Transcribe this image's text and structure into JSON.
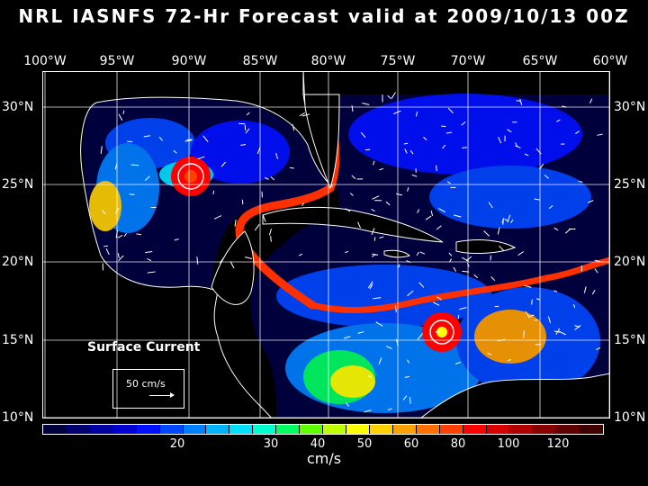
{
  "title": "NRL IASNFS  72-Hr Forecast valid at 2009/10/13 00Z",
  "lon_labels": [
    "100°W",
    "95°W",
    "90°W",
    "85°W",
    "80°W",
    "75°W",
    "70°W",
    "65°W",
    "60°W"
  ],
  "lat_labels": [
    "30°N",
    "25°N",
    "20°N",
    "15°N",
    "10°N"
  ],
  "surface_label": "Surface Current",
  "legend_vector": "50 cm/s",
  "colorbar": {
    "colors": [
      "#00003c",
      "#000070",
      "#0000a0",
      "#0000d0",
      "#0010ff",
      "#0048ff",
      "#0080ff",
      "#00b4ff",
      "#00e0ff",
      "#00ffd0",
      "#00ff60",
      "#60ff00",
      "#c0ff00",
      "#ffff00",
      "#ffd000",
      "#ffa000",
      "#ff7000",
      "#ff4000",
      "#ff0000",
      "#d80000",
      "#b00000",
      "#880000",
      "#600000",
      "#400000"
    ],
    "ticks": [
      "20",
      "30",
      "40",
      "50",
      "60",
      "80",
      "100",
      "120"
    ],
    "units": "cm/s"
  },
  "colors": {
    "background": "#000000",
    "ocean_base": "#00003c",
    "land": "#000000",
    "coast": "#ffffff"
  }
}
